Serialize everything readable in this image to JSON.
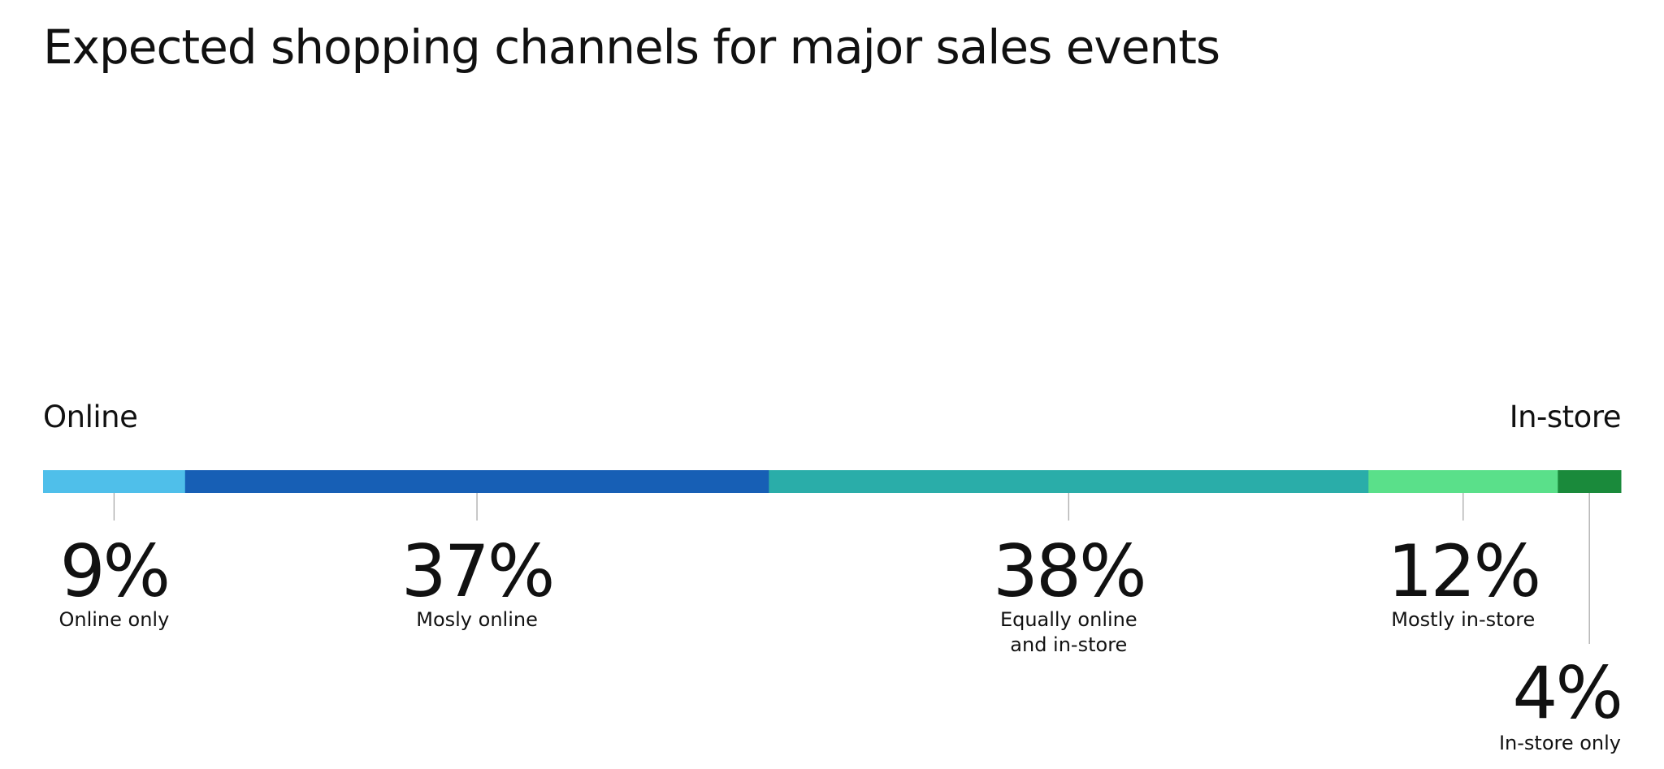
{
  "chart_data": {
    "type": "bar",
    "subtype": "stacked-horizontal-100",
    "title": "Expected shopping channels for major sales events",
    "axis_left_label": "Online",
    "axis_right_label": "In-store",
    "categories": [
      "Online only",
      "Mosly online",
      "Equally online\nand in-store",
      "Mostly in-store",
      "In-store only"
    ],
    "values": [
      9,
      37,
      38,
      12,
      4
    ],
    "value_labels": [
      "9%",
      "37%",
      "38%",
      "12%",
      "4%"
    ],
    "colors": [
      "#4fbfea",
      "#175fb5",
      "#2aada9",
      "#5ae08a",
      "#1a8a3b"
    ],
    "xlim": [
      0,
      100
    ]
  }
}
